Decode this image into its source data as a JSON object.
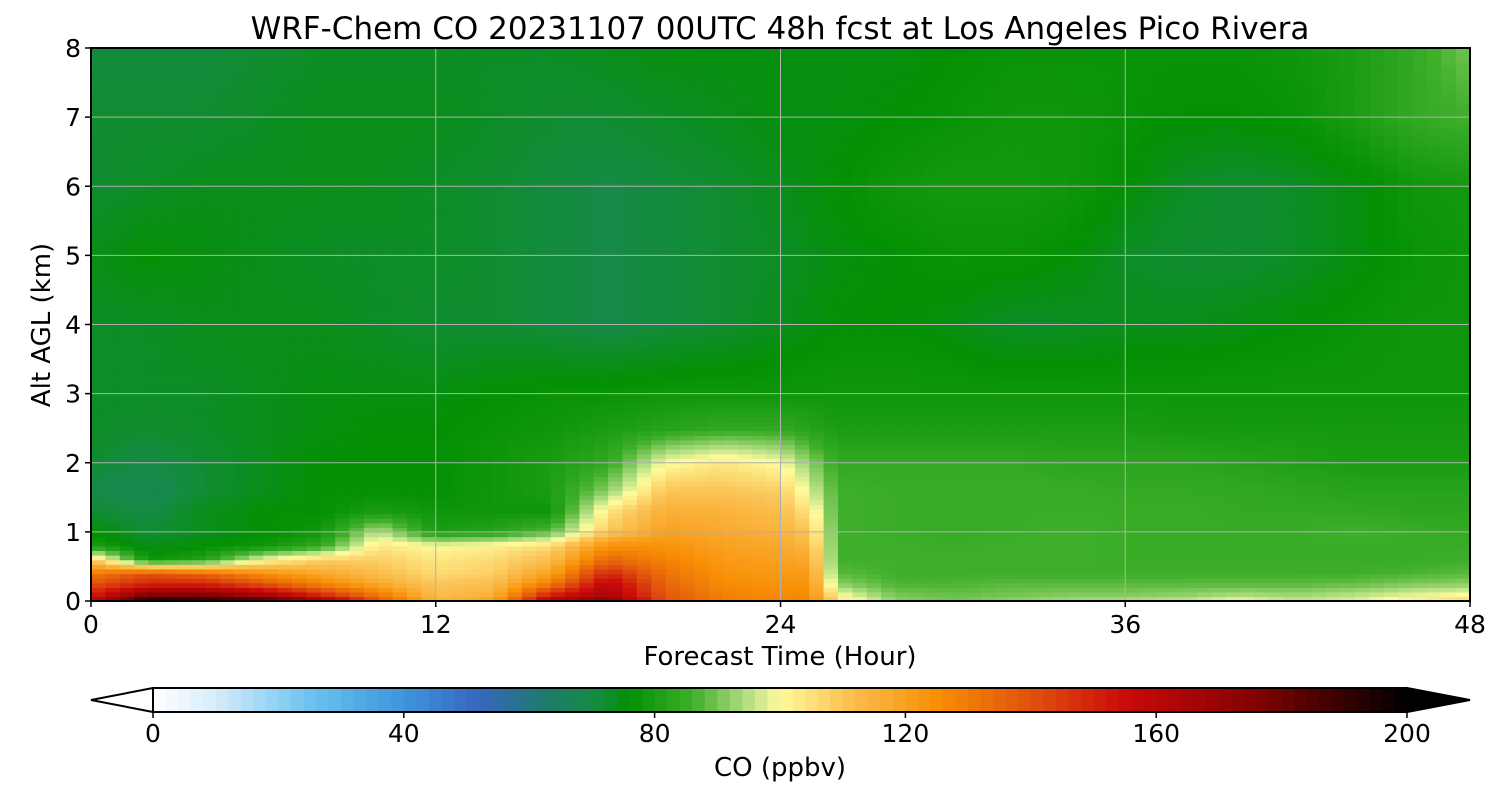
{
  "chart_data": {
    "type": "heatmap",
    "title": "WRF-Chem CO  20231107 00UTC 48h fcst at Los Angeles Pico Rivera",
    "xlabel": "Forecast Time (Hour)",
    "ylabel": "Alt AGL (km)",
    "xlim": [
      0,
      48
    ],
    "ylim": [
      0,
      8
    ],
    "x_ticks": [
      0,
      12,
      24,
      36,
      48
    ],
    "y_ticks": [
      0,
      1,
      2,
      3,
      4,
      5,
      6,
      7,
      8
    ],
    "grid": true,
    "x": [
      0,
      2,
      4,
      6,
      8,
      10,
      12,
      14,
      16,
      18,
      20,
      22,
      24,
      25,
      26,
      28,
      30,
      32,
      34,
      36,
      38,
      40,
      42,
      44,
      46,
      48
    ],
    "y": [
      0,
      0.1,
      0.25,
      0.4,
      0.6,
      0.8,
      1.0,
      1.3,
      1.6,
      2.0,
      2.5,
      3.0,
      4.0,
      5.0,
      6.0,
      7.0,
      8.0
    ],
    "z": [
      [
        160,
        198,
        196,
        190,
        170,
        140,
        115,
        120,
        165,
        175,
        140,
        130,
        128,
        128,
        105,
        92,
        90,
        92,
        94,
        95,
        96,
        100,
        96,
        98,
        104,
        108
      ],
      [
        150,
        175,
        175,
        165,
        148,
        130,
        112,
        115,
        150,
        165,
        138,
        128,
        126,
        126,
        100,
        90,
        89,
        90,
        91,
        91,
        92,
        94,
        93,
        95,
        98,
        100
      ],
      [
        140,
        150,
        150,
        140,
        128,
        118,
        110,
        112,
        130,
        160,
        135,
        126,
        124,
        124,
        92,
        87,
        87,
        88,
        88,
        88,
        88,
        88,
        88,
        89,
        91,
        92
      ],
      [
        130,
        140,
        135,
        125,
        118,
        112,
        106,
        108,
        120,
        150,
        132,
        124,
        122,
        122,
        88,
        86,
        86,
        86,
        86,
        86,
        86,
        86,
        86,
        86,
        87,
        88
      ],
      [
        110,
        78,
        82,
        100,
        108,
        108,
        104,
        106,
        112,
        135,
        128,
        122,
        120,
        118,
        86,
        86,
        86,
        86,
        86,
        85,
        85,
        85,
        85,
        85,
        85,
        86
      ],
      [
        80,
        74,
        76,
        78,
        84,
        104,
        100,
        102,
        106,
        125,
        124,
        120,
        118,
        114,
        86,
        86,
        85,
        86,
        86,
        85,
        85,
        85,
        85,
        85,
        85,
        85
      ],
      [
        76,
        72,
        74,
        76,
        78,
        96,
        80,
        82,
        88,
        110,
        120,
        118,
        115,
        110,
        86,
        85,
        85,
        85,
        86,
        85,
        85,
        85,
        85,
        86,
        85,
        84
      ],
      [
        72,
        70,
        74,
        76,
        76,
        80,
        78,
        78,
        78,
        104,
        116,
        115,
        112,
        104,
        86,
        85,
        85,
        85,
        85,
        85,
        85,
        84,
        84,
        84,
        83,
        83
      ],
      [
        70,
        68,
        72,
        74,
        76,
        76,
        76,
        78,
        80,
        92,
        110,
        110,
        108,
        98,
        86,
        85,
        85,
        85,
        85,
        84,
        84,
        84,
        83,
        82,
        82,
        82
      ],
      [
        72,
        70,
        72,
        74,
        76,
        76,
        76,
        78,
        80,
        84,
        100,
        104,
        100,
        92,
        84,
        84,
        84,
        84,
        83,
        83,
        83,
        82,
        81,
        80,
        80,
        80
      ],
      [
        73,
        72,
        73,
        74,
        75,
        76,
        76,
        77,
        78,
        80,
        82,
        84,
        84,
        82,
        80,
        80,
        80,
        80,
        80,
        80,
        79,
        79,
        79,
        79,
        79,
        79
      ],
      [
        73,
        73,
        73,
        74,
        75,
        75,
        75,
        76,
        77,
        77,
        78,
        78,
        78,
        78,
        78,
        78,
        78,
        78,
        78,
        78,
        78,
        78,
        78,
        78,
        78,
        78
      ],
      [
        73,
        73,
        74,
        74,
        74,
        73,
        72,
        72,
        71,
        70,
        71,
        72,
        74,
        75,
        76,
        76,
        75,
        73,
        73,
        74,
        74,
        75,
        76,
        77,
        78,
        78
      ],
      [
        74,
        76,
        75,
        74,
        73,
        73,
        73,
        72,
        71,
        70,
        71,
        72,
        73,
        74,
        75,
        76,
        77,
        77,
        76,
        73,
        72,
        72,
        73,
        75,
        77,
        78
      ],
      [
        72,
        73,
        74,
        74,
        74,
        74,
        73,
        72,
        71,
        70,
        71,
        72,
        74,
        75,
        76,
        78,
        79,
        79,
        78,
        76,
        73,
        72,
        73,
        75,
        78,
        79
      ],
      [
        72,
        72,
        72,
        73,
        74,
        74,
        74,
        73,
        72,
        72,
        73,
        74,
        75,
        75,
        75,
        76,
        77,
        78,
        78,
        77,
        76,
        76,
        77,
        80,
        84,
        86
      ],
      [
        71,
        71,
        71,
        72,
        73,
        73,
        73,
        73,
        73,
        74,
        75,
        75,
        75,
        75,
        75,
        75,
        76,
        77,
        77,
        77,
        77,
        77,
        78,
        80,
        84,
        90
      ]
    ],
    "colorbar": {
      "label": "CO  (ppbv)",
      "min": 0,
      "max": 200,
      "ticks": [
        0,
        40,
        80,
        120,
        160,
        200
      ],
      "extend": "both",
      "stops": [
        {
          "v": 0,
          "c": "#ffffff"
        },
        {
          "v": 10,
          "c": "#d6ecfa"
        },
        {
          "v": 25,
          "c": "#6cc3f0"
        },
        {
          "v": 40,
          "c": "#3f95db"
        },
        {
          "v": 52,
          "c": "#3766be"
        },
        {
          "v": 62,
          "c": "#1e7a6e"
        },
        {
          "v": 70,
          "c": "#178a48"
        },
        {
          "v": 76,
          "c": "#039003"
        },
        {
          "v": 86,
          "c": "#3faf2a"
        },
        {
          "v": 95,
          "c": "#b7e085"
        },
        {
          "v": 100,
          "c": "#fefc9c"
        },
        {
          "v": 110,
          "c": "#fbc457"
        },
        {
          "v": 125,
          "c": "#f88f05"
        },
        {
          "v": 140,
          "c": "#e0520d"
        },
        {
          "v": 155,
          "c": "#cb0a0a"
        },
        {
          "v": 175,
          "c": "#850202"
        },
        {
          "v": 200,
          "c": "#000000"
        }
      ]
    }
  }
}
